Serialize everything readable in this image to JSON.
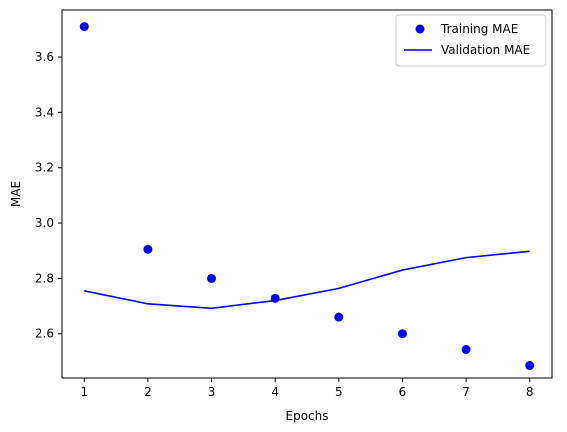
{
  "chart_data": {
    "type": "line",
    "xlabel": "Epochs",
    "ylabel": "MAE",
    "xlim": [
      0.65,
      8.35
    ],
    "ylim": [
      2.44,
      3.77
    ],
    "x_ticks": [
      1,
      2,
      3,
      4,
      5,
      6,
      7,
      8
    ],
    "y_ticks": [
      2.6,
      2.8,
      3.0,
      3.2,
      3.4,
      3.6
    ],
    "legend_position": "top-right",
    "grid": false,
    "x": [
      1,
      2,
      3,
      4,
      5,
      6,
      7,
      8
    ],
    "series": [
      {
        "name": "Training MAE",
        "style": "scatter",
        "color": "#0000ff",
        "values": [
          3.71,
          2.905,
          2.8,
          2.728,
          2.66,
          2.6,
          2.543,
          2.485
        ]
      },
      {
        "name": "Validation MAE",
        "style": "line",
        "color": "#0000ff",
        "values": [
          2.755,
          2.708,
          2.692,
          2.72,
          2.764,
          2.83,
          2.875,
          2.898
        ]
      }
    ]
  }
}
